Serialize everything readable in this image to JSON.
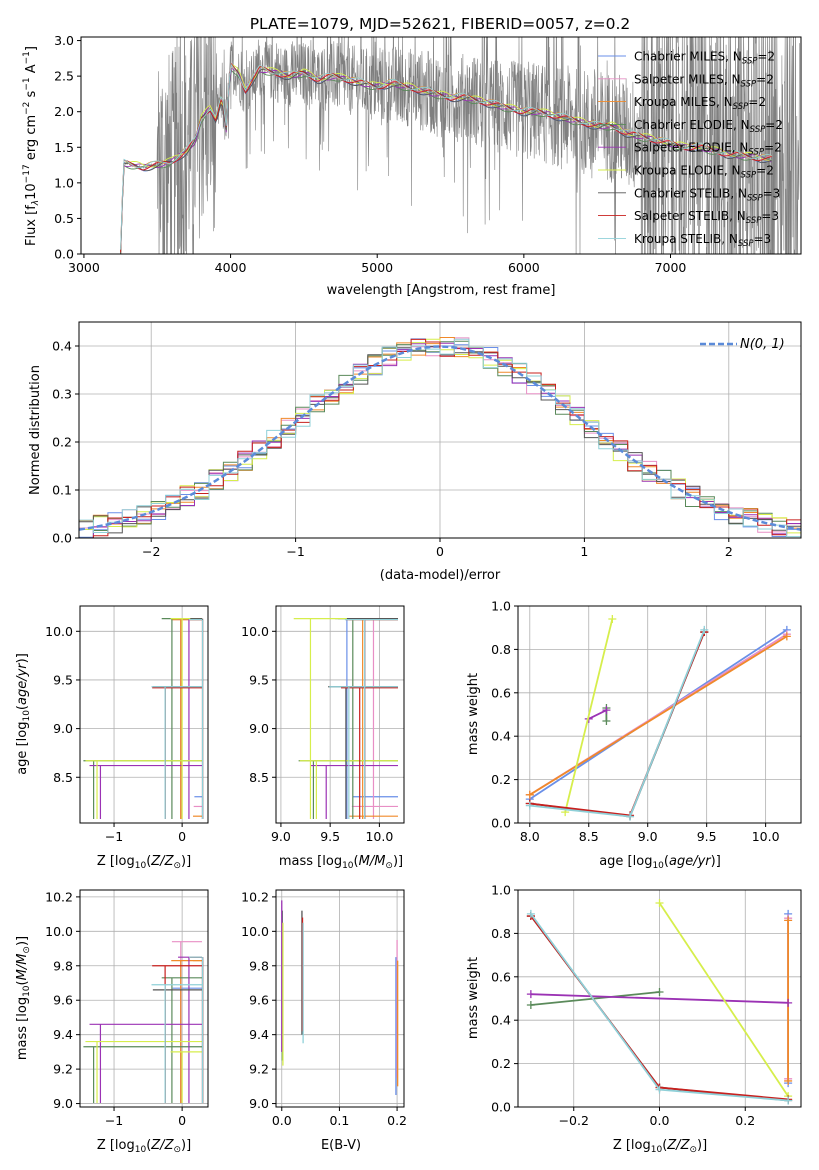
{
  "title": "PLATE=1079, MJD=52621, FIBERID=0057, z=0.2",
  "colors": {
    "Chabrier MILES": "#6a8fe8",
    "Salpeter MILES": "#e88fc5",
    "Kroupa MILES": "#f08a2a",
    "Chabrier ELODIE": "#5a8a5a",
    "Salpeter ELODIE": "#9b32b4",
    "Kroupa ELODIE": "#d6ee4c",
    "Chabrier STELIB": "#555555",
    "Salpeter STELIB": "#c8201e",
    "Kroupa STELIB": "#8fd0d8",
    "data": "#808080"
  },
  "chart_data": [
    {
      "type": "line",
      "panel": "spectrum",
      "xlabel": "wavelength [Angstrom, rest frame]",
      "ylabel": "Flux [f_λ 10^-17 erg cm^-2 s^-1 A^-1]",
      "xlim": [
        2980,
        7890
      ],
      "ylim": [
        0.0,
        3.05
      ],
      "xticks": [
        "3000",
        "4000",
        "5000",
        "6000",
        "7000"
      ],
      "yticks": [
        "0.0",
        "0.5",
        "1.0",
        "1.5",
        "2.0",
        "2.5",
        "3.0"
      ],
      "legend": "upper right",
      "legend_entries": [
        {
          "label": "Chabrier MILES, N",
          "sub": "SSP",
          "rest": "=2",
          "series": "Chabrier MILES"
        },
        {
          "label": "Salpeter MILES, N",
          "sub": "SSP",
          "rest": "=2",
          "series": "Salpeter MILES"
        },
        {
          "label": "Kroupa MILES, N",
          "sub": "SSP",
          "rest": "=2",
          "series": "Kroupa MILES"
        },
        {
          "label": "Chabrier ELODIE, N",
          "sub": "SSP",
          "rest": "=2",
          "series": "Chabrier ELODIE"
        },
        {
          "label": "Salpeter ELODIE, N",
          "sub": "SSP",
          "rest": "=2",
          "series": "Salpeter ELODIE"
        },
        {
          "label": "Kroupa ELODIE, N",
          "sub": "SSP",
          "rest": "=2",
          "series": "Kroupa ELODIE"
        },
        {
          "label": "Chabrier STELIB, N",
          "sub": "SSP",
          "rest": "=3",
          "series": "Chabrier STELIB"
        },
        {
          "label": "Salpeter STELIB, N",
          "sub": "SSP",
          "rest": "=3",
          "series": "Salpeter STELIB"
        },
        {
          "label": "Kroupa STELIB, N",
          "sub": "SSP",
          "rest": "=3",
          "series": "Kroupa STELIB"
        }
      ],
      "model_continuum": {
        "x": [
          3250,
          3270,
          3400,
          3500,
          3600,
          3700,
          3760,
          3800,
          3860,
          3900,
          3940,
          3970,
          4000,
          4050,
          4100,
          4200,
          4300,
          4400,
          4500,
          4600,
          4700,
          4800,
          4900,
          5000,
          5100,
          5200,
          5300,
          5400,
          5500,
          5600,
          5700,
          5800,
          5900,
          6000,
          6100,
          6200,
          6300,
          6400,
          6500,
          6600,
          6700,
          6800,
          6900,
          7000,
          7100,
          7200,
          7300,
          7400,
          7500,
          7600,
          7700
        ],
        "y": [
          0.0,
          1.28,
          1.22,
          1.25,
          1.3,
          1.45,
          1.6,
          1.9,
          2.05,
          1.9,
          2.2,
          1.75,
          2.65,
          2.55,
          2.3,
          2.6,
          2.55,
          2.5,
          2.55,
          2.45,
          2.5,
          2.45,
          2.4,
          2.35,
          2.4,
          2.35,
          2.3,
          2.25,
          2.2,
          2.2,
          2.15,
          2.1,
          2.05,
          2.0,
          2.0,
          1.95,
          1.9,
          1.85,
          1.8,
          1.8,
          1.7,
          1.65,
          1.6,
          1.55,
          1.5,
          1.5,
          1.45,
          1.4,
          1.38,
          1.35,
          1.33
        ]
      }
    },
    {
      "type": "line",
      "panel": "residuals",
      "xlabel": "(data-model)/error",
      "ylabel": "Normed distribution",
      "xlim": [
        -2.5,
        2.5
      ],
      "ylim": [
        0.0,
        0.45
      ],
      "xticks": [
        "−2",
        "−1",
        "0",
        "1",
        "2"
      ],
      "yticks": [
        "0.0",
        "0.1",
        "0.2",
        "0.3",
        "0.4"
      ],
      "legend": "upper right",
      "normal_label": "N(0, 1)",
      "bin_width": 0.1
    },
    {
      "type": "scatter",
      "panel": "age-vs-Z",
      "xlabel": "Z [log10(Z/Z_sun)]",
      "ylabel": "age [log10(age/yr)]",
      "xlim": [
        -1.5,
        0.38
      ],
      "ylim": [
        8.03,
        10.26
      ],
      "xticks": [
        "−1",
        "0"
      ],
      "yticks": [
        "8.5",
        "9.0",
        "9.5",
        "10.0"
      ]
    },
    {
      "type": "scatter",
      "panel": "age-vs-mass",
      "xlabel": "mass [log10(M/M_sun)]",
      "xlim": [
        8.95,
        10.25
      ],
      "ylim": [
        8.03,
        10.26
      ],
      "xticks": [
        "9.0",
        "9.5",
        "10.0"
      ],
      "yticks": [
        "8.5",
        "9.0",
        "9.5",
        "10.0"
      ]
    },
    {
      "type": "line",
      "panel": "massweight-vs-age",
      "xlabel": "age [log10(age/yr)]",
      "ylabel": "mass weight",
      "xlim": [
        7.9,
        10.3
      ],
      "ylim": [
        0.0,
        1.0
      ],
      "xticks": [
        "8.0",
        "8.5",
        "9.0",
        "9.5",
        "10.0"
      ],
      "yticks": [
        "0.0",
        "0.2",
        "0.4",
        "0.6",
        "0.8",
        "1.0"
      ],
      "series": [
        {
          "name": "Chabrier MILES",
          "x": [
            8.0,
            10.18
          ],
          "y": [
            0.11,
            0.89
          ]
        },
        {
          "name": "Salpeter MILES",
          "x": [
            8.0,
            10.18
          ],
          "y": [
            0.13,
            0.87
          ]
        },
        {
          "name": "Kroupa MILES",
          "x": [
            8.0,
            10.18
          ],
          "y": [
            0.13,
            0.86
          ]
        },
        {
          "name": "Chabrier ELODIE",
          "x": [
            8.65,
            8.65
          ],
          "y": [
            0.47,
            0.53
          ]
        },
        {
          "name": "Salpeter ELODIE",
          "x": [
            8.5,
            8.65
          ],
          "y": [
            0.48,
            0.52
          ]
        },
        {
          "name": "Kroupa ELODIE",
          "x": [
            8.3,
            8.7
          ],
          "y": [
            0.05,
            0.94
          ]
        },
        {
          "name": "Chabrier STELIB",
          "x": [
            8.0,
            8.85,
            9.48
          ],
          "y": [
            0.09,
            0.03,
            0.88
          ]
        },
        {
          "name": "Salpeter STELIB",
          "x": [
            8.0,
            8.85,
            9.48
          ],
          "y": [
            0.09,
            0.035,
            0.88
          ]
        },
        {
          "name": "Kroupa STELIB",
          "x": [
            8.0,
            8.85,
            9.48
          ],
          "y": [
            0.08,
            0.03,
            0.89
          ]
        }
      ]
    },
    {
      "type": "scatter",
      "panel": "mass-vs-Z",
      "xlabel": "Z [log10(Z/Z_sun)]",
      "ylabel": "mass [log10(M/M_sun)]",
      "xlim": [
        -1.5,
        0.38
      ],
      "ylim": [
        8.98,
        10.24
      ],
      "xticks": [
        "−1",
        "0"
      ],
      "yticks": [
        "9.0",
        "9.2",
        "9.4",
        "9.6",
        "9.8",
        "10.0",
        "10.2"
      ]
    },
    {
      "type": "scatter",
      "panel": "mass-vs-EBV",
      "xlabel": "E(B-V)",
      "xlim": [
        -0.01,
        0.212
      ],
      "ylim": [
        8.98,
        10.24
      ],
      "xticks": [
        "0.0",
        "0.1",
        "0.2"
      ],
      "yticks": [
        "9.0",
        "9.2",
        "9.4",
        "9.6",
        "9.8",
        "10.0",
        "10.2"
      ],
      "series": [
        {
          "name": "Chabrier MILES",
          "x": 0.198,
          "ylo": 9.05,
          "yhi": 9.85
        },
        {
          "name": "Salpeter MILES",
          "x": 0.2,
          "ylo": 9.15,
          "yhi": 9.95
        },
        {
          "name": "Kroupa MILES",
          "x": 0.201,
          "ylo": 9.1,
          "yhi": 9.83
        },
        {
          "name": "Chabrier ELODIE",
          "x": 0.001,
          "ylo": 9.25,
          "yhi": 10.12
        },
        {
          "name": "Salpeter ELODIE",
          "x": 0.0,
          "ylo": 9.3,
          "yhi": 10.18
        },
        {
          "name": "Kroupa ELODIE",
          "x": 0.002,
          "ylo": 9.22,
          "yhi": 10.05
        },
        {
          "name": "Chabrier STELIB",
          "x": 0.035,
          "ylo": 9.4,
          "yhi": 10.12
        },
        {
          "name": "Salpeter STELIB",
          "x": 0.036,
          "ylo": 9.42,
          "yhi": 10.08
        },
        {
          "name": "Kroupa STELIB",
          "x": 0.037,
          "ylo": 9.35,
          "yhi": 10.05
        }
      ]
    },
    {
      "type": "line",
      "panel": "massweight-vs-Z",
      "xlabel": "Z [log10(Z/Z_sun)]",
      "ylabel": "mass weight",
      "xlim": [
        -0.33,
        0.33
      ],
      "ylim": [
        0.0,
        1.0
      ],
      "xticks": [
        "−0.2",
        "0.0",
        "0.2"
      ],
      "yticks": [
        "0.0",
        "0.2",
        "0.4",
        "0.6",
        "0.8",
        "1.0"
      ],
      "series": [
        {
          "name": "Chabrier MILES",
          "x": [
            0.3,
            0.3
          ],
          "y": [
            0.11,
            0.89
          ]
        },
        {
          "name": "Salpeter MILES",
          "x": [
            0.3,
            0.3
          ],
          "y": [
            0.13,
            0.87
          ]
        },
        {
          "name": "Kroupa MILES",
          "x": [
            0.3,
            0.3
          ],
          "y": [
            0.12,
            0.86
          ]
        },
        {
          "name": "Chabrier ELODIE",
          "x": [
            -0.3,
            0.0
          ],
          "y": [
            0.47,
            0.53
          ]
        },
        {
          "name": "Salpeter ELODIE",
          "x": [
            -0.3,
            0.3
          ],
          "y": [
            0.52,
            0.48
          ]
        },
        {
          "name": "Kroupa ELODIE",
          "x": [
            0.0,
            0.3
          ],
          "y": [
            0.94,
            0.05
          ]
        },
        {
          "name": "Chabrier STELIB",
          "x": [
            -0.3,
            0.0,
            0.3
          ],
          "y": [
            0.88,
            0.09,
            0.03
          ]
        },
        {
          "name": "Salpeter STELIB",
          "x": [
            -0.3,
            0.0,
            0.3
          ],
          "y": [
            0.88,
            0.09,
            0.035
          ]
        },
        {
          "name": "Kroupa STELIB",
          "x": [
            -0.3,
            0.0,
            0.3
          ],
          "y": [
            0.89,
            0.08,
            0.03
          ]
        }
      ]
    }
  ],
  "ssp_blocks": [
    {
      "name": "Chabrier MILES",
      "Z": [
        -0.02,
        0.3
      ],
      "age": [
        10.13,
        8.3
      ],
      "mass": [
        9.67,
        9.85
      ]
    },
    {
      "name": "Salpeter MILES",
      "Z": [
        -0.02,
        0.3
      ],
      "age": [
        10.12,
        8.2
      ],
      "mass": [
        9.94,
        9.85
      ]
    },
    {
      "name": "Kroupa MILES",
      "Z": [
        -0.02,
        0.3
      ],
      "age": [
        10.12,
        8.1
      ],
      "mass": [
        9.83,
        9.83
      ]
    },
    {
      "name": "Chabrier ELODIE",
      "Z": [
        -1.3,
        -0.15
      ],
      "age": [
        8.67,
        10.13
      ],
      "mass": [
        9.33,
        9.73
      ]
    },
    {
      "name": "Salpeter ELODIE",
      "Z": [
        -1.2,
        0.1
      ],
      "age": [
        8.62,
        10.13
      ],
      "mass": [
        9.46,
        9.85
      ]
    },
    {
      "name": "Kroupa ELODIE",
      "Z": [
        -1.25,
        0.0
      ],
      "age": [
        8.67,
        10.13
      ],
      "mass": [
        9.36,
        9.3
      ]
    },
    {
      "name": "Chabrier STELIB",
      "Z": [
        -0.25,
        0.3
      ],
      "age": [
        9.43,
        10.13
      ],
      "mass": [
        9.66,
        9.85
      ]
    },
    {
      "name": "Salpeter STELIB",
      "Z": [
        -0.25,
        0.3
      ],
      "age": [
        9.42,
        10.12
      ],
      "mass": [
        9.8,
        9.85
      ]
    },
    {
      "name": "Kroupa STELIB",
      "Z": [
        -0.25,
        0.3
      ],
      "age": [
        9.43,
        10.12
      ],
      "mass": [
        9.69,
        9.85
      ]
    }
  ]
}
